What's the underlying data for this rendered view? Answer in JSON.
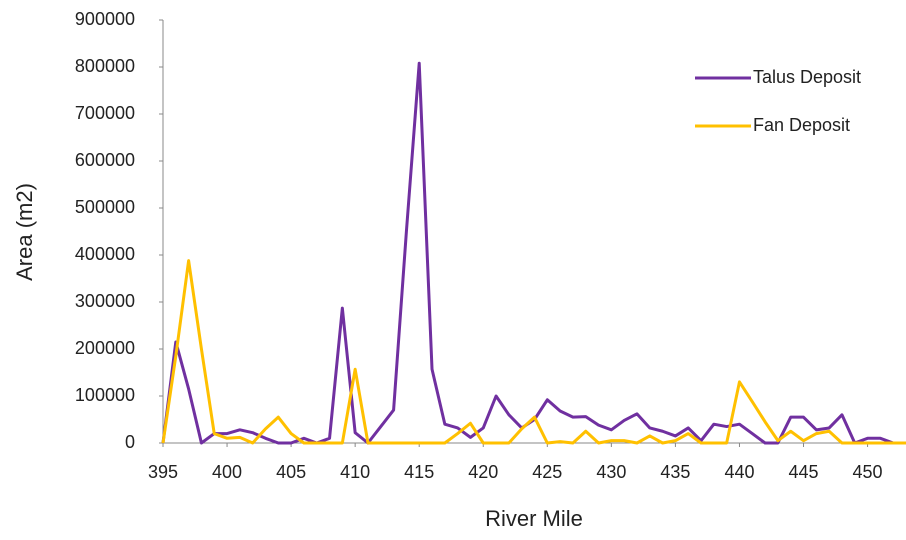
{
  "chart_data": {
    "type": "line",
    "x_label": "River Mile",
    "y_label": "Area (m2)",
    "x": [
      395,
      396,
      397,
      398,
      399,
      400,
      401,
      402,
      403,
      404,
      405,
      406,
      407,
      408,
      409,
      410,
      411,
      412,
      413,
      414,
      415,
      416,
      417,
      418,
      419,
      420,
      421,
      422,
      423,
      424,
      425,
      426,
      427,
      428,
      429,
      430,
      431,
      432,
      433,
      434,
      435,
      436,
      437,
      438,
      439,
      440,
      441,
      442,
      443,
      444,
      445,
      446,
      447,
      448,
      449,
      450,
      451,
      452,
      453
    ],
    "series": [
      {
        "name": "Talus Deposit",
        "color": "#7030a0",
        "values": [
          0,
          215000,
          115000,
          0,
          20000,
          20000,
          28000,
          22000,
          10000,
          0,
          0,
          10000,
          0,
          10000,
          287000,
          22000,
          0,
          35000,
          70000,
          450000,
          808000,
          157000,
          40000,
          32000,
          12000,
          32000,
          100000,
          60000,
          32000,
          50000,
          92000,
          68000,
          55000,
          56000,
          38000,
          28000,
          48000,
          62000,
          32000,
          25000,
          15000,
          32000,
          5000,
          40000,
          35000,
          40000,
          20000,
          0,
          0,
          55000,
          55000,
          28000,
          32000,
          60000,
          0,
          10000,
          10000,
          0,
          0
        ]
      },
      {
        "name": "Fan Deposit",
        "color": "#ffc000",
        "values": [
          0,
          185000,
          388000,
          200000,
          20000,
          10000,
          12000,
          0,
          30000,
          55000,
          20000,
          0,
          0,
          0,
          0,
          157000,
          0,
          0,
          0,
          0,
          0,
          0,
          0,
          20000,
          42000,
          0,
          0,
          0,
          30000,
          55000,
          0,
          3000,
          0,
          25000,
          0,
          5000,
          5000,
          0,
          15000,
          0,
          5000,
          20000,
          0,
          0,
          0,
          130000,
          88000,
          45000,
          5000,
          25000,
          5000,
          20000,
          25000,
          0,
          0,
          0,
          0,
          0,
          0
        ]
      }
    ],
    "xlim": [
      395,
      453
    ],
    "xticks": [
      395,
      400,
      405,
      410,
      415,
      420,
      425,
      430,
      435,
      440,
      445,
      450
    ],
    "ylim": [
      0,
      900000
    ],
    "yticks": [
      0,
      100000,
      200000,
      300000,
      400000,
      500000,
      600000,
      700000,
      800000,
      900000
    ],
    "grid": false,
    "legend": "top-right"
  }
}
